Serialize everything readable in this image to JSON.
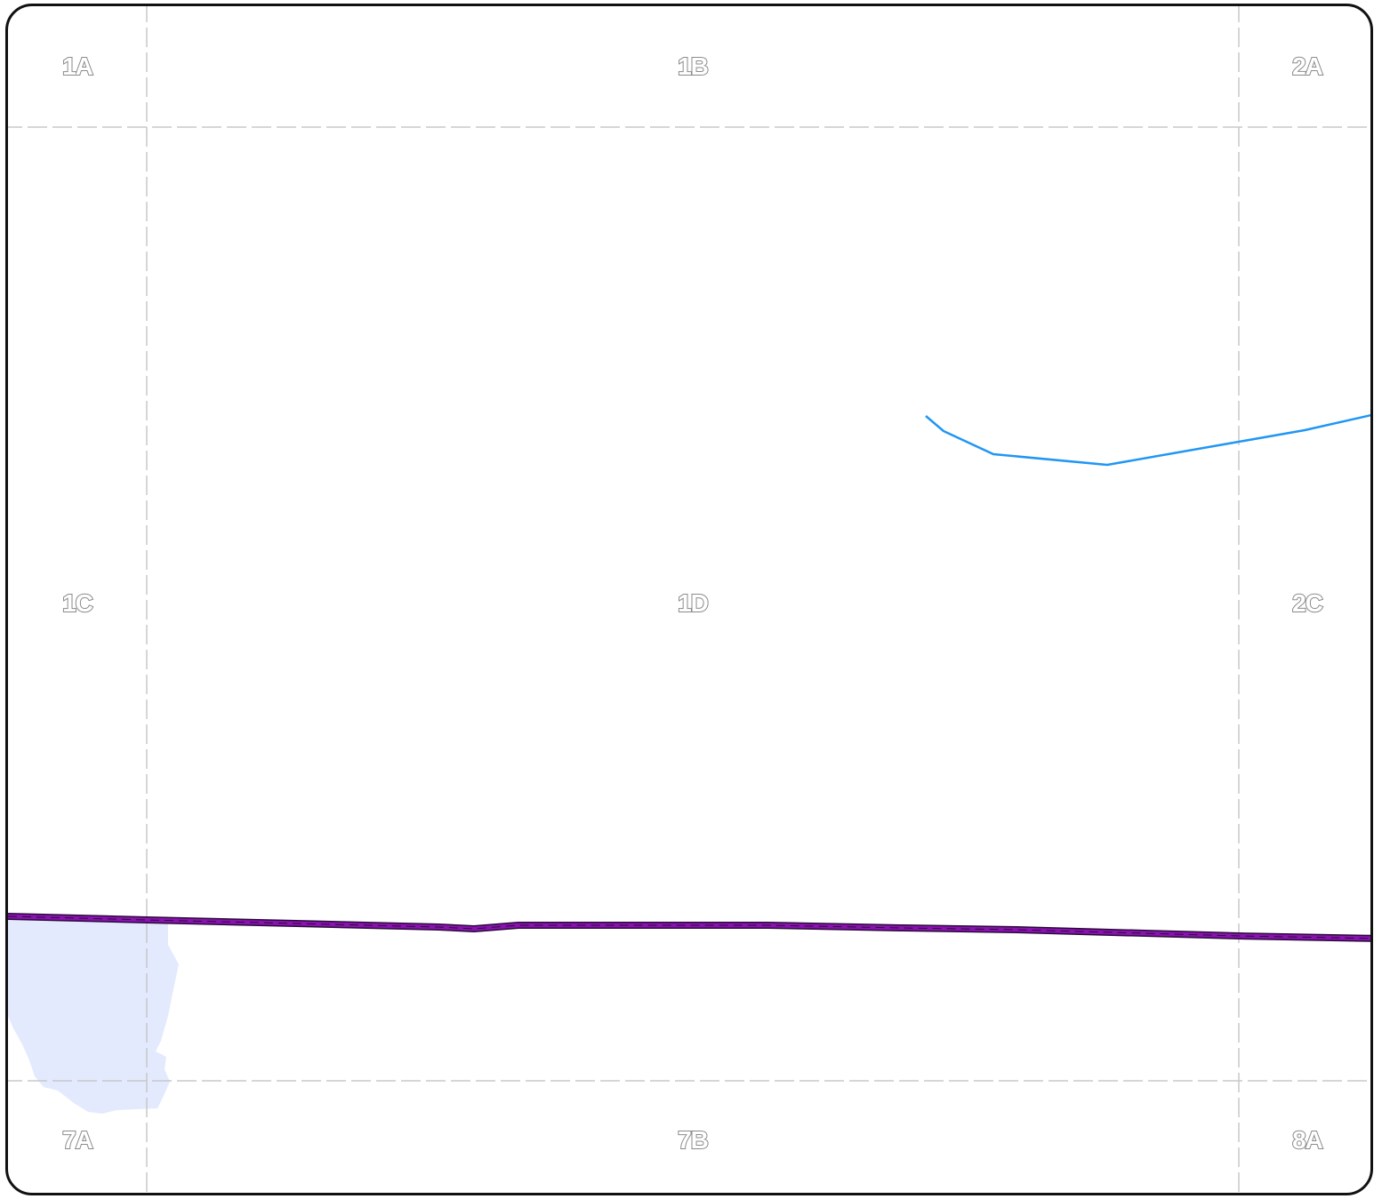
{
  "map": {
    "grid": {
      "row_1": [
        "1A",
        "1B",
        "2A"
      ],
      "row_2": [
        "1C",
        "1D",
        "2C"
      ],
      "row_3": [
        "7A",
        "7B",
        "8A"
      ]
    },
    "colors": {
      "frame": "#111111",
      "grid_line": "#c8c8c8",
      "label_stroke": "#8a8a8a",
      "water_fill": "#e3eafd",
      "river": "#2196f3",
      "boundary_outer": "#2a0a3a",
      "boundary_inner": "#8a12b0"
    },
    "features": [
      "water-body",
      "river",
      "boundary"
    ]
  }
}
